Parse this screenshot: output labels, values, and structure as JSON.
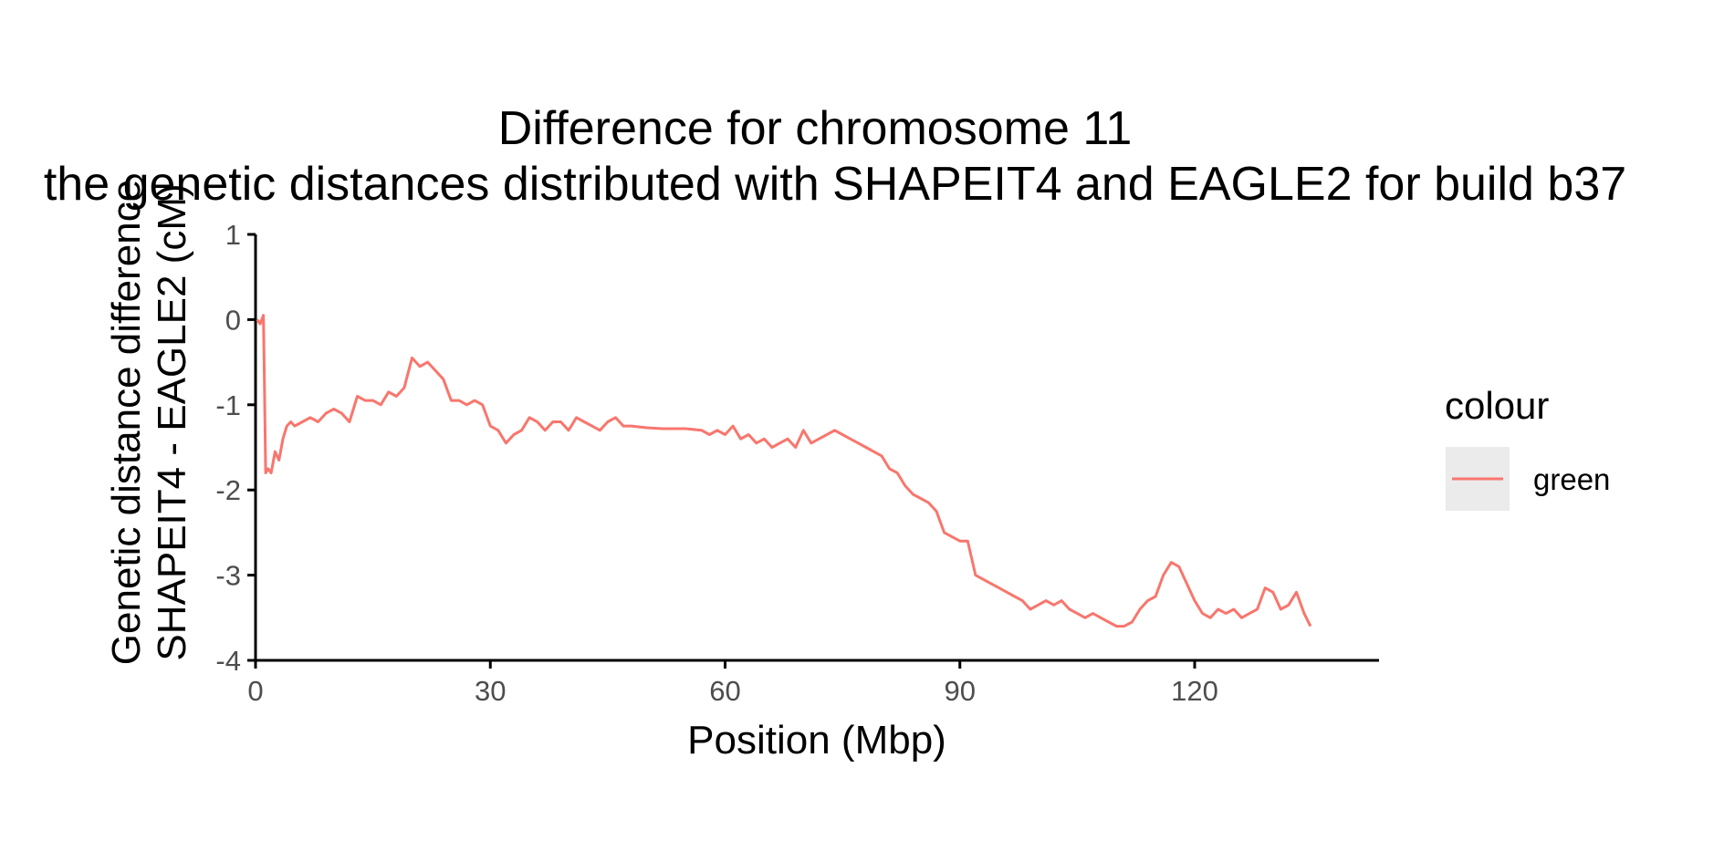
{
  "chart_data": {
    "type": "line",
    "title": "Difference for chromosome 11",
    "subtitle": "the genetic distances distributed with SHAPEIT4 and EAGLE2 for build b37",
    "xlabel": "Position (Mbp)",
    "ylabel_line1": "Genetic distance difference",
    "ylabel_line2": "SHAPEIT4 - EAGLE2 (cM)",
    "xlim": [
      0,
      140
    ],
    "ylim": [
      -4,
      1
    ],
    "x_ticks": [
      0,
      30,
      60,
      90,
      120
    ],
    "y_ticks": [
      1,
      0,
      -1,
      -2,
      -3,
      -4
    ],
    "x_tick_labels": [
      "0",
      "30",
      "60",
      "90",
      "120"
    ],
    "y_tick_labels": [
      "1",
      "0",
      "-1",
      "-2",
      "-3",
      "-4"
    ],
    "grid": false,
    "legend": {
      "title": "colour",
      "position": "right",
      "entries": [
        "green"
      ]
    },
    "series": [
      {
        "name": "green",
        "color": "#F8766D",
        "x": [
          0.2,
          0.6,
          1.0,
          1.1,
          1.3,
          1.6,
          2.0,
          2.5,
          3.0,
          3.5,
          4.0,
          4.5,
          5.0,
          6.0,
          7.0,
          8.0,
          9.0,
          10.0,
          11.0,
          12.0,
          13.0,
          14.0,
          15.0,
          16.0,
          17.0,
          18.0,
          19.0,
          20.0,
          20.5,
          21.0,
          22.0,
          23.0,
          24.0,
          25.0,
          26.0,
          27.0,
          28.0,
          29.0,
          30.0,
          31.0,
          32.0,
          33.0,
          34.0,
          35.0,
          36.0,
          37.0,
          38.0,
          39.0,
          40.0,
          41.0,
          42.0,
          43.0,
          44.0,
          45.0,
          46.0,
          47.0,
          48.0,
          50.0,
          52.0,
          55.0,
          57.0,
          58.0,
          59.0,
          60.0,
          61.0,
          62.0,
          63.0,
          64.0,
          65.0,
          66.0,
          67.0,
          68.0,
          69.0,
          70.0,
          71.0,
          72.0,
          73.0,
          74.0,
          75.0,
          76.0,
          77.0,
          78.0,
          79.0,
          80.0,
          81.0,
          82.0,
          83.0,
          84.0,
          85.0,
          86.0,
          87.0,
          88.0,
          89.0,
          90.0,
          91.0,
          92.0,
          93.0,
          94.0,
          95.0,
          96.0,
          97.0,
          98.0,
          99.0,
          100.0,
          101.0,
          102.0,
          103.0,
          104.0,
          105.0,
          106.0,
          107.0,
          108.0,
          109.0,
          110.0,
          111.0,
          112.0,
          113.0,
          114.0,
          115.0,
          116.0,
          117.0,
          118.0,
          119.0,
          120.0,
          121.0,
          122.0,
          123.0,
          124.0,
          125.0,
          126.0,
          127.0,
          128.0,
          129.0,
          130.0,
          131.0,
          132.0,
          133.0,
          134.0,
          134.8
        ],
        "values": [
          0.0,
          -0.05,
          0.05,
          -0.5,
          -1.8,
          -1.75,
          -1.8,
          -1.55,
          -1.65,
          -1.4,
          -1.25,
          -1.2,
          -1.25,
          -1.2,
          -1.15,
          -1.2,
          -1.1,
          -1.05,
          -1.1,
          -1.2,
          -0.9,
          -0.95,
          -0.95,
          -1.0,
          -0.85,
          -0.9,
          -0.8,
          -0.45,
          -0.5,
          -0.55,
          -0.5,
          -0.6,
          -0.7,
          -0.95,
          -0.95,
          -1.0,
          -0.95,
          -1.0,
          -1.25,
          -1.3,
          -1.45,
          -1.35,
          -1.3,
          -1.15,
          -1.2,
          -1.3,
          -1.2,
          -1.2,
          -1.3,
          -1.15,
          -1.2,
          -1.25,
          -1.3,
          -1.2,
          -1.15,
          -1.25,
          -1.25,
          -1.27,
          -1.28,
          -1.28,
          -1.3,
          -1.35,
          -1.3,
          -1.35,
          -1.25,
          -1.4,
          -1.35,
          -1.45,
          -1.4,
          -1.5,
          -1.45,
          -1.4,
          -1.5,
          -1.3,
          -1.45,
          -1.4,
          -1.35,
          -1.3,
          -1.35,
          -1.4,
          -1.45,
          -1.5,
          -1.55,
          -1.6,
          -1.75,
          -1.8,
          -1.95,
          -2.05,
          -2.1,
          -2.15,
          -2.25,
          -2.5,
          -2.55,
          -2.6,
          -2.6,
          -3.0,
          -3.05,
          -3.1,
          -3.15,
          -3.2,
          -3.25,
          -3.3,
          -3.4,
          -3.35,
          -3.3,
          -3.35,
          -3.3,
          -3.4,
          -3.45,
          -3.5,
          -3.45,
          -3.5,
          -3.55,
          -3.6,
          -3.6,
          -3.55,
          -3.4,
          -3.3,
          -3.25,
          -3.0,
          -2.85,
          -2.9,
          -3.1,
          -3.3,
          -3.45,
          -3.5,
          -3.4,
          -3.45,
          -3.4,
          -3.5,
          -3.45,
          -3.4,
          -3.15,
          -3.2,
          -3.4,
          -3.35,
          -3.2,
          -3.45,
          -3.6
        ]
      }
    ]
  }
}
